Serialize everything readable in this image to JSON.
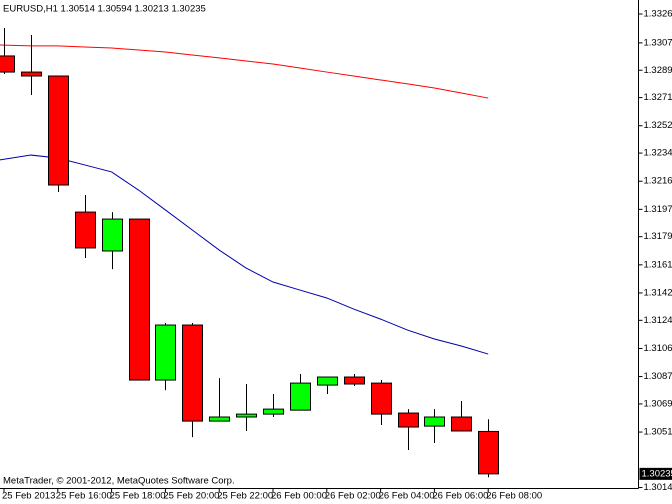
{
  "chart_data": {
    "type": "candlestick",
    "title": "EURUSD,H1  1.30514 1.30594 1.30213 1.30235",
    "annotation": "MetaTrader, © 2001-2012, MetaQuotes Software Corp.",
    "categories": [
      "25 Feb 2013",
      null,
      "25 Feb 16:00",
      null,
      "25 Feb 18:00",
      null,
      "25 Feb 20:00",
      null,
      "25 Feb 22:00",
      null,
      "26 Feb 00:00",
      null,
      "26 Feb 02:00",
      null,
      "26 Feb 04:00",
      null,
      "26 Feb 06:00",
      null,
      "26 Feb 08:00"
    ],
    "open": [
      1.32984,
      1.32878,
      1.32852,
      1.31957,
      1.31701,
      1.31911,
      1.30852,
      1.31214,
      1.30582,
      1.30609,
      1.30628,
      1.30654,
      1.30819,
      1.30872,
      1.30832,
      1.30635,
      1.30549,
      1.30609,
      1.30514
    ],
    "high": [
      1.33168,
      1.33122,
      1.32852,
      1.32069,
      1.31957,
      1.31911,
      1.31227,
      1.31227,
      1.30865,
      1.30826,
      1.3076,
      1.30892,
      1.30872,
      1.30892,
      1.30852,
      1.30661,
      1.30661,
      1.30714,
      1.30594
    ],
    "low": [
      1.32865,
      1.32727,
      1.32089,
      1.31655,
      1.31582,
      1.30852,
      1.30786,
      1.30477,
      1.30582,
      1.30517,
      1.30609,
      1.30654,
      1.3076,
      1.30813,
      1.30556,
      1.30392,
      1.30438,
      1.30517,
      1.30213
    ],
    "close": [
      1.32878,
      1.32852,
      1.32135,
      1.31721,
      1.31911,
      1.30852,
      1.31214,
      1.30582,
      1.30609,
      1.30628,
      1.30661,
      1.30832,
      1.30872,
      1.30826,
      1.30628,
      1.30543,
      1.30609,
      1.30517,
      1.30235
    ],
    "up_color": "#00ff00",
    "down_color": "#ff0000",
    "series": [
      {
        "color": "#ff0000",
        "values": [
          1.33056,
          1.3305,
          1.3305,
          1.33043,
          1.33036,
          1.33023,
          1.3301,
          1.3299,
          1.32971,
          1.32951,
          1.32931,
          1.32905,
          1.32878,
          1.32852,
          1.32826,
          1.328,
          1.32773,
          1.3274,
          1.32707
        ]
      },
      {
        "color": "#0000aa",
        "values": [
          1.323,
          1.32332,
          1.32313,
          1.32267,
          1.32221,
          1.32102,
          1.31971,
          1.31839,
          1.31707,
          1.31589,
          1.31497,
          1.31444,
          1.31392,
          1.31319,
          1.31253,
          1.31181,
          1.31122,
          1.31076,
          1.31023
        ]
      }
    ],
    "ylim": [
      1.30142,
      1.33352
    ],
    "yticks": [
      {
        "value": 1.3326,
        "label": "1.33260"
      },
      {
        "value": 1.3307,
        "label": "1.33070"
      },
      {
        "value": 1.3289,
        "label": "1.32890"
      },
      {
        "value": 1.3271,
        "label": "1.32710"
      },
      {
        "value": 1.32525,
        "label": "1.32525"
      },
      {
        "value": 1.32345,
        "label": "1.32345"
      },
      {
        "value": 1.3216,
        "label": "1.32160"
      },
      {
        "value": 1.31975,
        "label": "1.31975"
      },
      {
        "value": 1.31795,
        "label": "1.31795"
      },
      {
        "value": 1.3161,
        "label": "1.31610"
      },
      {
        "value": 1.31425,
        "label": "1.31425"
      },
      {
        "value": 1.31245,
        "label": "1.31245"
      },
      {
        "value": 1.3106,
        "label": "1.31060"
      },
      {
        "value": 1.30875,
        "label": "1.30875"
      },
      {
        "value": 1.30695,
        "label": "1.30695"
      },
      {
        "value": 1.3051,
        "label": "1.30510"
      },
      {
        "value": 1.30145,
        "label": "1.30145"
      }
    ],
    "current_price": {
      "value": 1.30235,
      "label": "1.30235"
    },
    "grid": false
  }
}
